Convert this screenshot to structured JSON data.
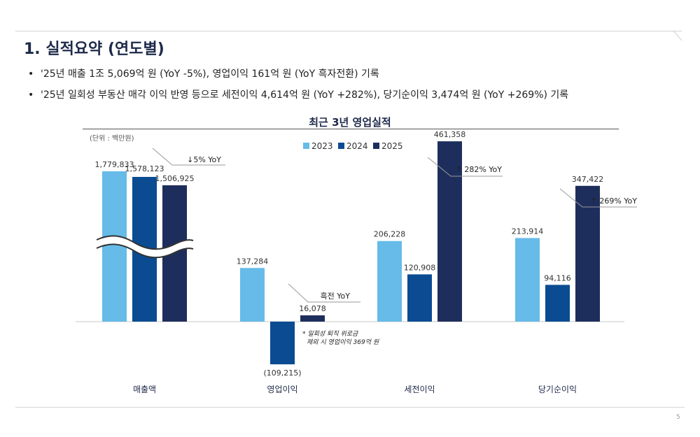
{
  "page": {
    "title": "1. 실적요약 (연도별)",
    "bullets": [
      "'25년 매출 1조 5,069억 원 (YoY -5%), 영업이익 161억 원 (YoY 흑자전환) 기록",
      "'25년 일회성 부동산 매각 이익 반영 등으로 세전이익 4,614억 원 (YoY +282%), 당기순이익 3,474억 원 (YoY +269%) 기록"
    ],
    "page_number": "5"
  },
  "colors": {
    "c2023": "#66bbe8",
    "c2024": "#0b4b92",
    "c2025": "#1e2e5c",
    "title": "#1e2a4a"
  },
  "chart_data": {
    "type": "bar",
    "title": "최근 3년 영업실적",
    "unit_label": "(단위 : 백만원)",
    "categories": [
      "매출액",
      "영업이익",
      "세전이익",
      "당기순이익"
    ],
    "series": [
      {
        "name": "2023",
        "values": [
          1779833,
          137284,
          206228,
          213914
        ],
        "labels": [
          "1,779,833",
          "137,284",
          "206,228",
          "213,914"
        ]
      },
      {
        "name": "2024",
        "values": [
          1578123,
          -109215,
          120908,
          94116
        ],
        "labels": [
          "1,578,123",
          "(109,215)",
          "120,908",
          "94,116"
        ]
      },
      {
        "name": "2025",
        "values": [
          1506925,
          16078,
          461358,
          347422
        ],
        "labels": [
          "1,506,925",
          "16,078",
          "461,358",
          "347,422"
        ]
      }
    ],
    "axis_break": "매출액 bars are truncated with a break mark",
    "legend_position": "top-center",
    "annotations": [
      {
        "category": "매출액",
        "text": "↓5% YoY"
      },
      {
        "category": "영업이익",
        "text": "흑전  YoY"
      },
      {
        "category": "세전이익",
        "text": "↑ 282% YoY"
      },
      {
        "category": "당기순이익",
        "text": "↑ 269% YoY"
      }
    ],
    "footnote_lines": [
      "* 일회성 퇴직 위로금",
      "제외 시 영업이익 369억 원"
    ]
  }
}
